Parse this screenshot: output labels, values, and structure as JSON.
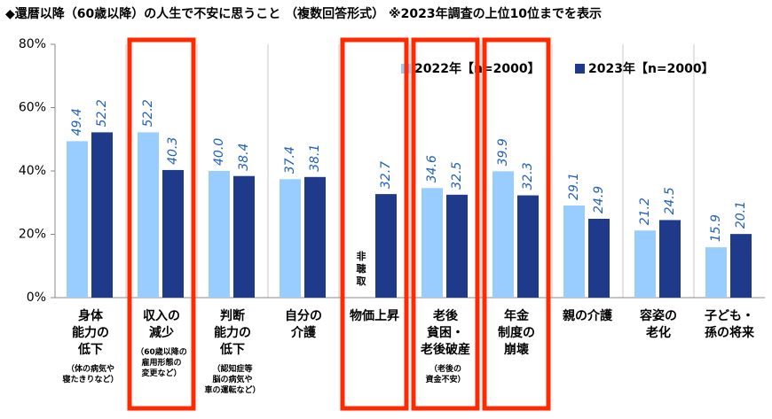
{
  "chart_data": {
    "type": "bar",
    "title": "◆還暦以降（60歳以降）の人生で不安に思うこと （複数回答形式） ※2023年調査の上位10位までを表示",
    "categories": [
      "身体\n能力の\n低下",
      "収入の\n減少",
      "判断\n能力の\n低下",
      "自分の\n介護",
      "物価上昇",
      "老後\n貧困・\n老後破産",
      "年金\n制度の\n崩壊",
      "親の介護",
      "容姿の\n老化",
      "子ども・\n孫の将来"
    ],
    "category_notes": [
      "（体の病気や\n寝たきりなど）",
      "（60歳以降の\n雇用形態の\n変更など）",
      "（認知症等\n脳の病気や\n車の運転など）",
      null,
      null,
      "（老後の\n資金不安）",
      null,
      null,
      null,
      null
    ],
    "series": [
      {
        "name": "2022年【n=2000】",
        "color": "#99ccff",
        "values": [
          49.4,
          52.2,
          40.0,
          37.4,
          null,
          34.6,
          39.9,
          29.1,
          21.2,
          15.9
        ],
        "value_labels": [
          "49.4",
          "52.2",
          "40.0",
          "37.4",
          null,
          "34.6",
          "39.9",
          "29.1",
          "21.2",
          "15.9"
        ]
      },
      {
        "name": "2023年【n=2000】",
        "color": "#1f3a8a",
        "values": [
          52.2,
          40.3,
          38.4,
          38.1,
          32.7,
          32.5,
          32.3,
          24.9,
          24.5,
          20.1
        ]
      }
    ],
    "missing_label": "非聴取",
    "ylim": [
      0,
      80
    ],
    "yticks": [
      {
        "value": 0,
        "label": "0%"
      },
      {
        "value": 20,
        "label": "20%"
      },
      {
        "value": 40,
        "label": "40%"
      },
      {
        "value": 60,
        "label": "60%"
      },
      {
        "value": 80,
        "label": "80%"
      }
    ],
    "highlight": [
      1,
      4,
      5,
      6
    ],
    "highlight_color": "#ff2a00"
  }
}
